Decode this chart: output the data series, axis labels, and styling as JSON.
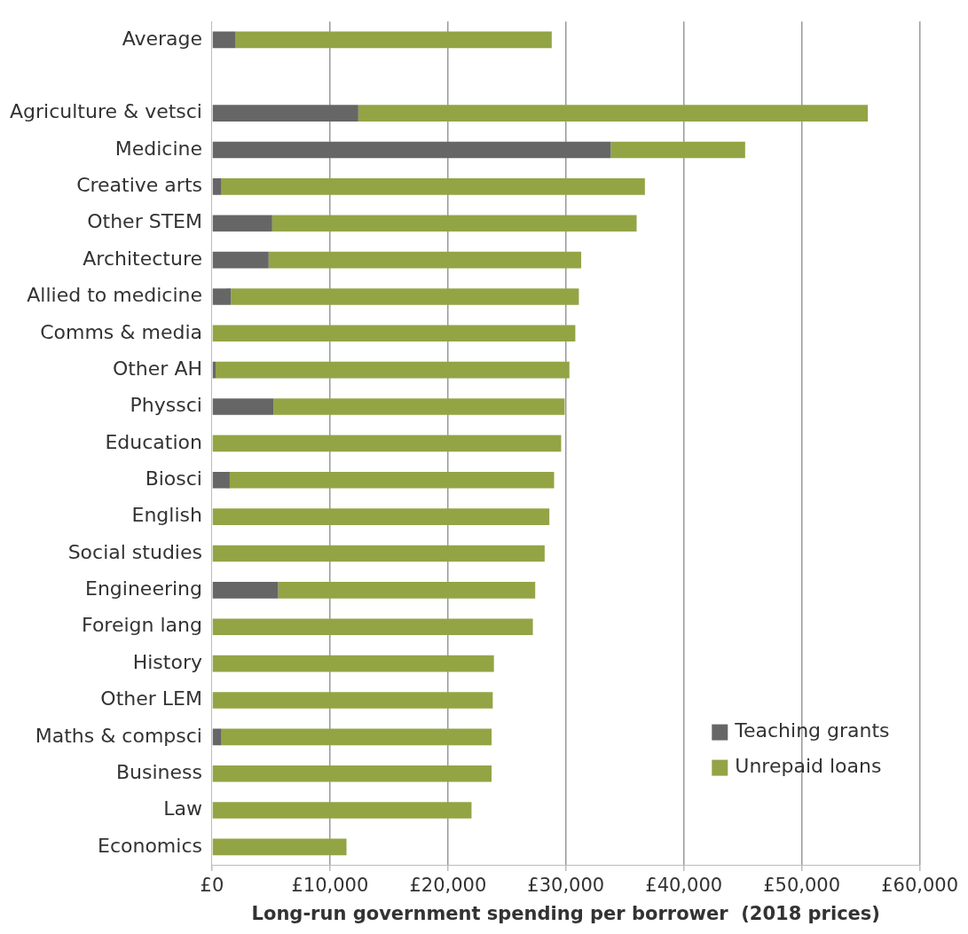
{
  "chart_data": {
    "type": "bar",
    "orientation": "horizontal",
    "stacked": true,
    "categories": [
      "Average",
      null,
      "Agriculture & vetsci",
      "Medicine",
      "Creative arts",
      "Other STEM",
      "Architecture",
      "Allied to medicine",
      "Comms & media",
      "Other AH",
      "Physsci",
      "Education",
      "Biosci",
      "English",
      "Social studies",
      "Engineering",
      "Foreign lang",
      "History",
      "Other LEM",
      "Maths & compsci",
      "Business",
      "Law",
      "Economics"
    ],
    "series": [
      {
        "name": "Teaching grants",
        "color": "#666666",
        "values": [
          2000,
          null,
          12400,
          33800,
          800,
          5100,
          4800,
          1600,
          0,
          300,
          5200,
          0,
          1500,
          0,
          0,
          5600,
          0,
          0,
          0,
          800,
          0,
          0,
          0
        ]
      },
      {
        "name": "Unrepaid loans",
        "color": "#93a445",
        "values": [
          26800,
          null,
          43200,
          11400,
          35900,
          30900,
          26500,
          29500,
          30800,
          30000,
          24700,
          29600,
          27500,
          28600,
          28200,
          21800,
          27200,
          23900,
          23800,
          22900,
          23700,
          22000,
          11400
        ]
      }
    ],
    "xlim": [
      0,
      60000
    ],
    "xticks": [
      {
        "value": 0,
        "label": "£0"
      },
      {
        "value": 10000,
        "label": "£10,000"
      },
      {
        "value": 20000,
        "label": "£20,000"
      },
      {
        "value": 30000,
        "label": "£30,000"
      },
      {
        "value": 40000,
        "label": "£40,000"
      },
      {
        "value": 50000,
        "label": "£50,000"
      },
      {
        "value": 60000,
        "label": "£60,000"
      }
    ],
    "xlabel": "Long-run government spending per borrower  (2018 prices)",
    "grid": "x",
    "legend": "bottom right"
  }
}
